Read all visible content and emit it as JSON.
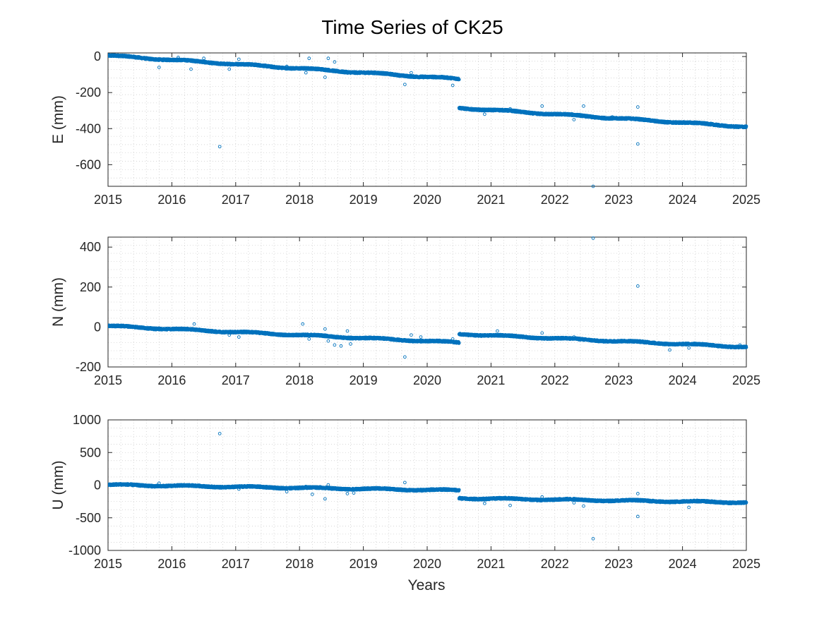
{
  "figure": {
    "title": "Time Series of CK25",
    "xlabel": "Years",
    "x_ticks": [
      "2015",
      "2016",
      "2017",
      "2018",
      "2019",
      "2020",
      "2021",
      "2022",
      "2023",
      "2024",
      "2025"
    ]
  },
  "colors": {
    "marker": "#0072BD",
    "axis": "#262626",
    "grid": "#bdbdbd"
  },
  "chart_data": [
    {
      "type": "scatter",
      "component": "E",
      "ylabel": "E (mm)",
      "xlim": [
        2015,
        2025
      ],
      "ylim": [
        -720,
        20
      ],
      "y_ticks": [
        0,
        -200,
        -400,
        -600
      ],
      "y_tick_labels": [
        "0",
        "-200",
        "-400",
        "-600"
      ],
      "grid": true,
      "marker": "open circle",
      "trend_segments": [
        {
          "x_start": 2015.0,
          "x_end": 2020.5,
          "y_start": 5,
          "y_end": -125
        },
        {
          "x_start": 2020.5,
          "x_end": 2025.0,
          "y_start": -285,
          "y_end": -390
        }
      ],
      "outliers": [
        {
          "x": 2015.8,
          "y": -60
        },
        {
          "x": 2016.1,
          "y": -5
        },
        {
          "x": 2016.3,
          "y": -70
        },
        {
          "x": 2016.5,
          "y": -10
        },
        {
          "x": 2016.75,
          "y": -500
        },
        {
          "x": 2016.9,
          "y": -70
        },
        {
          "x": 2017.05,
          "y": -15
        },
        {
          "x": 2017.8,
          "y": -55
        },
        {
          "x": 2018.1,
          "y": -90
        },
        {
          "x": 2018.15,
          "y": -10
        },
        {
          "x": 2018.4,
          "y": -115
        },
        {
          "x": 2018.45,
          "y": -10
        },
        {
          "x": 2018.55,
          "y": -30
        },
        {
          "x": 2019.65,
          "y": -155
        },
        {
          "x": 2019.75,
          "y": -90
        },
        {
          "x": 2020.4,
          "y": -160
        },
        {
          "x": 2020.9,
          "y": -320
        },
        {
          "x": 2021.3,
          "y": -290
        },
        {
          "x": 2021.8,
          "y": -275
        },
        {
          "x": 2022.3,
          "y": -350
        },
        {
          "x": 2022.45,
          "y": -275
        },
        {
          "x": 2022.6,
          "y": -720
        },
        {
          "x": 2022.9,
          "y": -335
        },
        {
          "x": 2023.3,
          "y": -280
        },
        {
          "x": 2023.3,
          "y": -485
        }
      ]
    },
    {
      "type": "scatter",
      "component": "N",
      "ylabel": "N (mm)",
      "xlim": [
        2015,
        2025
      ],
      "ylim": [
        -200,
        450
      ],
      "y_ticks": [
        400,
        200,
        0,
        -200
      ],
      "y_tick_labels": [
        "400",
        "200",
        "0",
        "-200"
      ],
      "grid": true,
      "marker": "open circle",
      "trend_segments": [
        {
          "x_start": 2015.0,
          "x_end": 2020.5,
          "y_start": 5,
          "y_end": -78
        },
        {
          "x_start": 2020.5,
          "x_end": 2025.0,
          "y_start": -35,
          "y_end": -100
        }
      ],
      "outliers": [
        {
          "x": 2015.8,
          "y": -5
        },
        {
          "x": 2016.35,
          "y": 15
        },
        {
          "x": 2016.9,
          "y": -40
        },
        {
          "x": 2017.05,
          "y": -50
        },
        {
          "x": 2017.75,
          "y": -40
        },
        {
          "x": 2018.05,
          "y": 15
        },
        {
          "x": 2018.15,
          "y": -60
        },
        {
          "x": 2018.4,
          "y": -10
        },
        {
          "x": 2018.45,
          "y": -70
        },
        {
          "x": 2018.55,
          "y": -90
        },
        {
          "x": 2018.65,
          "y": -95
        },
        {
          "x": 2018.75,
          "y": -20
        },
        {
          "x": 2018.8,
          "y": -85
        },
        {
          "x": 2019.65,
          "y": -150
        },
        {
          "x": 2019.75,
          "y": -40
        },
        {
          "x": 2019.9,
          "y": -50
        },
        {
          "x": 2020.4,
          "y": -60
        },
        {
          "x": 2021.1,
          "y": -20
        },
        {
          "x": 2021.8,
          "y": -30
        },
        {
          "x": 2022.3,
          "y": -50
        },
        {
          "x": 2022.6,
          "y": 445
        },
        {
          "x": 2023.3,
          "y": 205
        },
        {
          "x": 2023.8,
          "y": -115
        },
        {
          "x": 2024.1,
          "y": -105
        },
        {
          "x": 2024.9,
          "y": -90
        }
      ]
    },
    {
      "type": "scatter",
      "component": "U",
      "ylabel": "U (mm)",
      "xlim": [
        2015,
        2025
      ],
      "ylim": [
        -1000,
        1000
      ],
      "y_ticks": [
        1000,
        500,
        0,
        -500,
        -1000
      ],
      "y_tick_labels": [
        "1000",
        "500",
        "0",
        "-500",
        "-1000"
      ],
      "grid": true,
      "marker": "open circle",
      "trend_segments": [
        {
          "x_start": 2015.0,
          "x_end": 2020.5,
          "y_start": 5,
          "y_end": -80
        },
        {
          "x_start": 2020.5,
          "x_end": 2025.0,
          "y_start": -200,
          "y_end": -265
        }
      ],
      "outliers": [
        {
          "x": 2015.8,
          "y": 30
        },
        {
          "x": 2016.75,
          "y": 790
        },
        {
          "x": 2017.05,
          "y": -60
        },
        {
          "x": 2017.8,
          "y": -100
        },
        {
          "x": 2018.1,
          "y": -20
        },
        {
          "x": 2018.2,
          "y": -140
        },
        {
          "x": 2018.4,
          "y": -210
        },
        {
          "x": 2018.45,
          "y": 5
        },
        {
          "x": 2018.75,
          "y": -130
        },
        {
          "x": 2018.85,
          "y": -120
        },
        {
          "x": 2019.65,
          "y": 40
        },
        {
          "x": 2020.9,
          "y": -280
        },
        {
          "x": 2021.3,
          "y": -310
        },
        {
          "x": 2021.8,
          "y": -180
        },
        {
          "x": 2022.3,
          "y": -270
        },
        {
          "x": 2022.45,
          "y": -320
        },
        {
          "x": 2022.6,
          "y": -820
        },
        {
          "x": 2023.3,
          "y": -130
        },
        {
          "x": 2023.3,
          "y": -480
        },
        {
          "x": 2024.1,
          "y": -340
        }
      ]
    }
  ]
}
